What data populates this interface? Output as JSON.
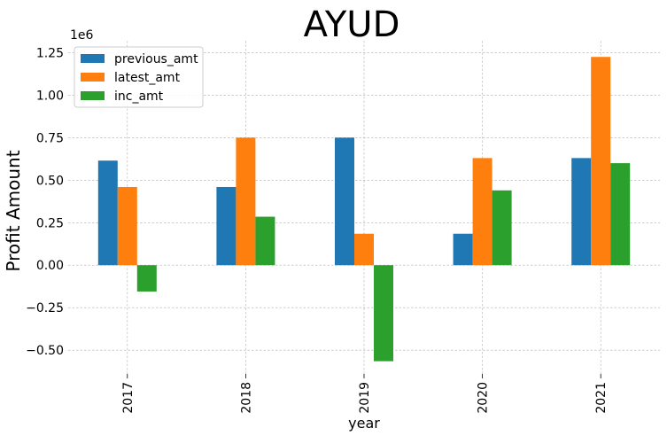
{
  "chart_data": {
    "type": "bar",
    "title": "AYUD",
    "xlabel": "year",
    "ylabel": "Profit Amount",
    "y_scale_label": "1e6",
    "categories": [
      "2017",
      "2018",
      "2019",
      "2020",
      "2021"
    ],
    "series": [
      {
        "name": "previous_amt",
        "color": "#1f77b4",
        "values": [
          0.615,
          0.46,
          0.75,
          0.185,
          0.63
        ]
      },
      {
        "name": "latest_amt",
        "color": "#ff7f0e",
        "values": [
          0.46,
          0.75,
          0.185,
          0.63,
          1.225
        ]
      },
      {
        "name": "inc_amt",
        "color": "#2ca02c",
        "values": [
          -0.155,
          0.285,
          -0.565,
          0.44,
          0.6
        ]
      }
    ],
    "yticks": [
      "−0.50",
      "−0.25",
      "0.00",
      "0.25",
      "0.50",
      "0.75",
      "1.00",
      "1.25"
    ],
    "ytick_values": [
      -0.5,
      -0.25,
      0,
      0.25,
      0.5,
      0.75,
      1.0,
      1.25
    ],
    "ylim": [
      -0.64,
      1.32
    ],
    "grid": true,
    "legend_position": "top-left"
  }
}
